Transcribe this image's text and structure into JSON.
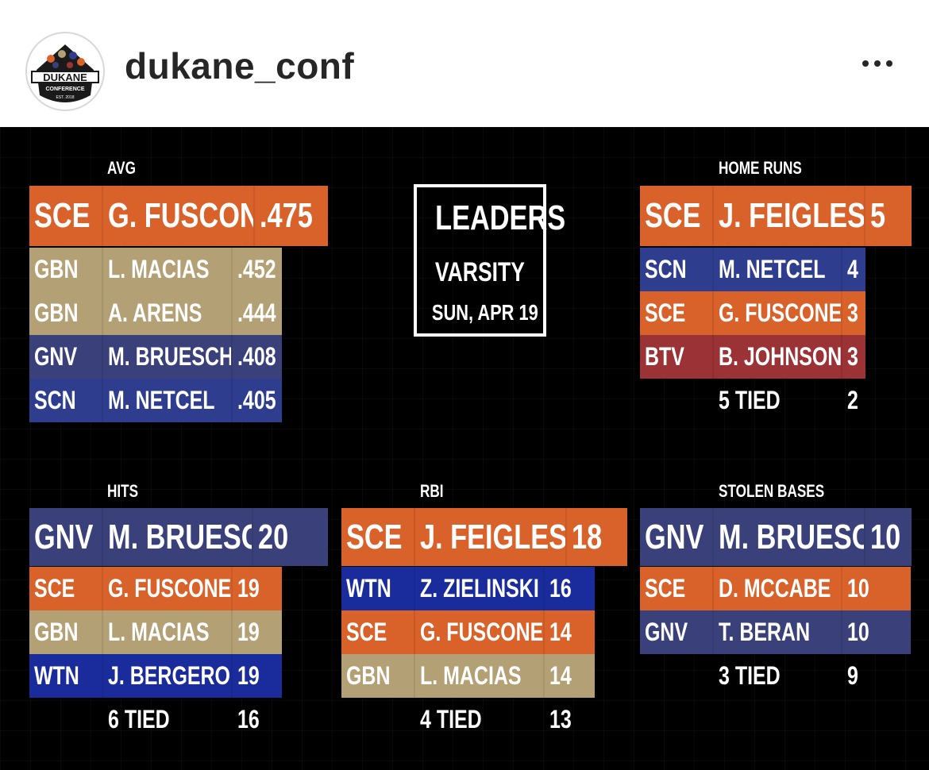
{
  "post_header": {
    "username": "dukane_conf",
    "avatar_text": "DUKANE",
    "avatar_subtext": "CONFERENCE",
    "avatar_est": "EST. 2018"
  },
  "title_box": {
    "line1": "LEADERS",
    "line2": "VARSITY",
    "line3": "SUN, APR 19"
  },
  "colors": {
    "SCE": "#d9622b",
    "GBN": "#b3a074",
    "GNV": "#39407a",
    "SCN": "#2e3d8e",
    "WTN": "#1a2c9b",
    "BTV": "#9b3236",
    "background": "#000000"
  },
  "categories": {
    "avg": {
      "label": "AVG",
      "rows": [
        {
          "team": "SCE",
          "player": "G. FUSCONE",
          "value": ".475"
        },
        {
          "team": "GBN",
          "player": "L. MACIAS",
          "value": ".452"
        },
        {
          "team": "GBN",
          "player": "A. ARENS",
          "value": ".444"
        },
        {
          "team": "GNV",
          "player": "M. BRUESCH",
          "value": ".408"
        },
        {
          "team": "SCN",
          "player": "M. NETCEL",
          "value": ".405"
        }
      ]
    },
    "home_runs": {
      "label": "HOME RUNS",
      "rows": [
        {
          "team": "SCE",
          "player": "J. FEIGLESON",
          "value": "5"
        },
        {
          "team": "SCN",
          "player": "M. NETCEL",
          "value": "4"
        },
        {
          "team": "SCE",
          "player": "G. FUSCONE",
          "value": "3"
        },
        {
          "team": "BTV",
          "player": "B. JOHNSON",
          "value": "3"
        }
      ],
      "tied": {
        "player": "5 TIED",
        "value": "2"
      }
    },
    "hits": {
      "label": "HITS",
      "rows": [
        {
          "team": "GNV",
          "player": "M. BRUESCH",
          "value": "20"
        },
        {
          "team": "SCE",
          "player": "G. FUSCONE",
          "value": "19"
        },
        {
          "team": "GBN",
          "player": "L. MACIAS",
          "value": "19"
        },
        {
          "team": "WTN",
          "player": "J. BERGERON",
          "value": "19"
        }
      ],
      "tied": {
        "player": "6 TIED",
        "value": "16"
      }
    },
    "rbi": {
      "label": "RBI",
      "rows": [
        {
          "team": "SCE",
          "player": "J. FEIGLESON",
          "value": "18"
        },
        {
          "team": "WTN",
          "player": "Z. ZIELINSKI",
          "value": "16"
        },
        {
          "team": "SCE",
          "player": "G. FUSCONE",
          "value": "14"
        },
        {
          "team": "GBN",
          "player": "L. MACIAS",
          "value": "14"
        }
      ],
      "tied": {
        "player": "4 TIED",
        "value": "13"
      }
    },
    "stolen_bases": {
      "label": "STOLEN BASES",
      "rows": [
        {
          "team": "GNV",
          "player": "M. BRUESCH",
          "value": "10"
        },
        {
          "team": "SCE",
          "player": "D. MCCABE",
          "value": "10"
        },
        {
          "team": "GNV",
          "player": "T. BERAN",
          "value": "10"
        }
      ],
      "tied": {
        "player": "3 TIED",
        "value": "9"
      }
    }
  }
}
